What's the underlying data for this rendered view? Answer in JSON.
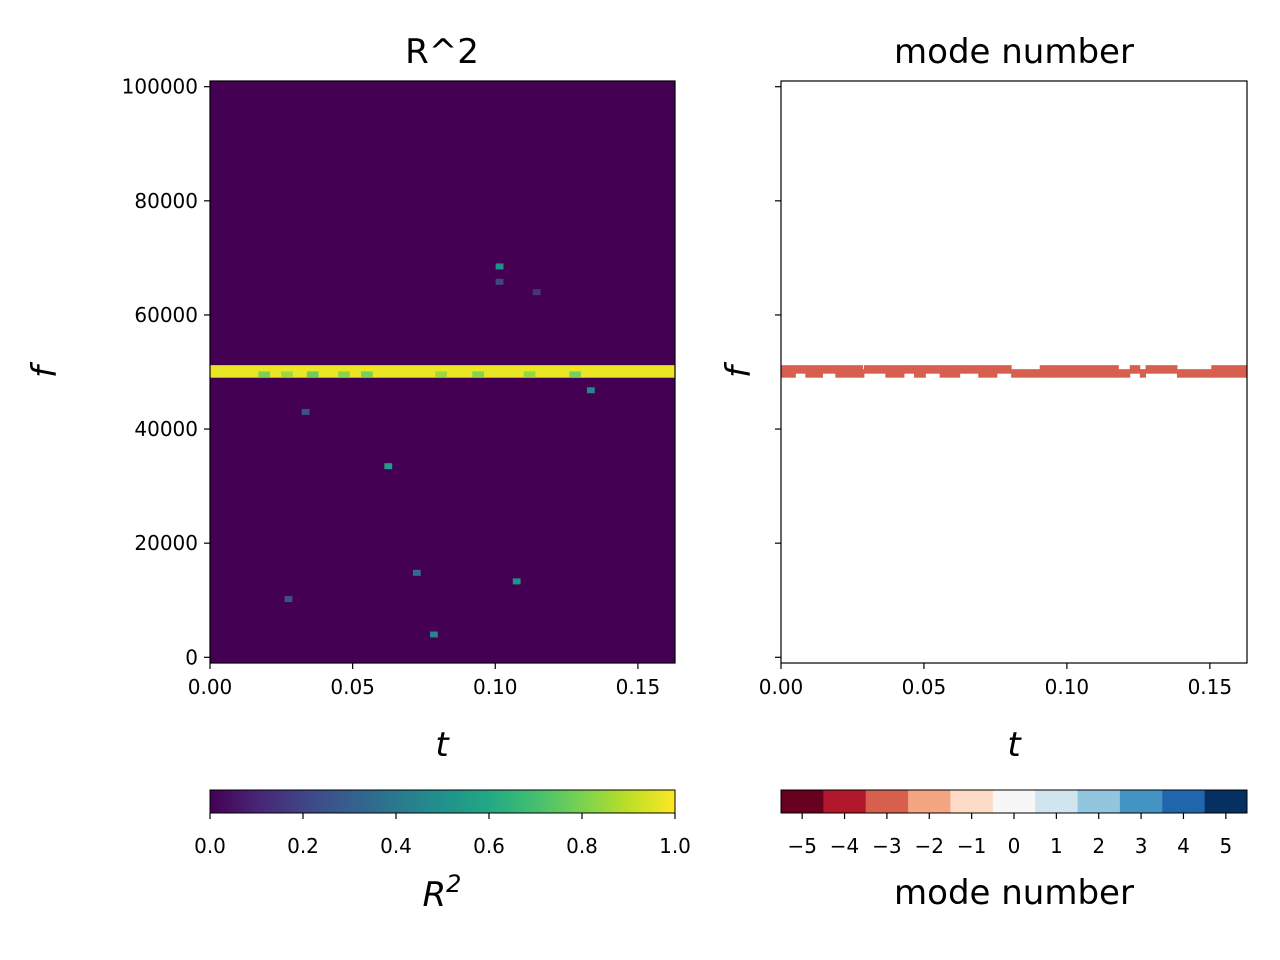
{
  "chart_data": [
    {
      "type": "heatmap",
      "title": "R^2",
      "xlabel": "t",
      "ylabel": "f",
      "xlim": [
        0,
        0.163
      ],
      "ylim": [
        -1000,
        101000
      ],
      "xticks": [
        0.0,
        0.05,
        0.1,
        0.15
      ],
      "xtick_labels": [
        "0.00",
        "0.05",
        "0.10",
        "0.15"
      ],
      "yticks": [
        0,
        20000,
        40000,
        60000,
        80000,
        100000
      ],
      "ytick_labels": [
        "0",
        "20000",
        "40000",
        "60000",
        "80000",
        "100000"
      ],
      "background_value": 0.0,
      "band": {
        "f_low": 49000,
        "f_high": 51200,
        "value": 0.97
      },
      "band_dips": [
        {
          "t": 0.019,
          "value": 0.8
        },
        {
          "t": 0.027,
          "value": 0.85
        },
        {
          "t": 0.036,
          "value": 0.78
        },
        {
          "t": 0.047,
          "value": 0.82
        },
        {
          "t": 0.055,
          "value": 0.8
        },
        {
          "t": 0.081,
          "value": 0.85
        },
        {
          "t": 0.094,
          "value": 0.82
        },
        {
          "t": 0.112,
          "value": 0.84
        },
        {
          "t": 0.128,
          "value": 0.8
        }
      ],
      "cells": [
        {
          "t": 0.1015,
          "f": 68500,
          "value": 0.5
        },
        {
          "t": 0.1015,
          "f": 65800,
          "value": 0.2
        },
        {
          "t": 0.1145,
          "f": 64000,
          "value": 0.15
        },
        {
          "t": 0.1335,
          "f": 46800,
          "value": 0.45
        },
        {
          "t": 0.0335,
          "f": 43000,
          "value": 0.25
        },
        {
          "t": 0.0625,
          "f": 33500,
          "value": 0.55
        },
        {
          "t": 0.0725,
          "f": 14800,
          "value": 0.35
        },
        {
          "t": 0.1075,
          "f": 13300,
          "value": 0.5
        },
        {
          "t": 0.0275,
          "f": 10200,
          "value": 0.25
        },
        {
          "t": 0.0785,
          "f": 4000,
          "value": 0.45
        }
      ],
      "colorbar": {
        "label": "R^2",
        "cmap": "viridis",
        "range": [
          0,
          1
        ],
        "ticks": [
          0.0,
          0.2,
          0.4,
          0.6,
          0.8,
          1.0
        ],
        "tick_labels": [
          "0.0",
          "0.2",
          "0.4",
          "0.6",
          "0.8",
          "1.0"
        ]
      }
    },
    {
      "type": "heatmap",
      "title": "mode number",
      "xlabel": "t",
      "ylabel": "f",
      "xlim": [
        0,
        0.163
      ],
      "ylim": [
        -1000,
        101000
      ],
      "xticks": [
        0.0,
        0.05,
        0.1,
        0.15
      ],
      "xtick_labels": [
        "0.00",
        "0.05",
        "0.10",
        "0.15"
      ],
      "yticks": [
        0,
        20000,
        40000,
        60000,
        80000,
        100000
      ],
      "mode_value": -3,
      "mode_color": "#d6604d",
      "band_segments": [
        {
          "t0": 0.0,
          "t1": 0.005,
          "f_low": 49000,
          "f_high": 51200
        },
        {
          "t0": 0.005,
          "t1": 0.0085,
          "f_low": 49700,
          "f_high": 51200
        },
        {
          "t0": 0.0085,
          "t1": 0.0145,
          "f_low": 49000,
          "f_high": 51200
        },
        {
          "t0": 0.0145,
          "t1": 0.019,
          "f_low": 49700,
          "f_high": 51200
        },
        {
          "t0": 0.019,
          "t1": 0.0285,
          "f_low": 49000,
          "f_high": 51200
        },
        {
          "t0": 0.0285,
          "t1": 0.029,
          "f_low": 49000,
          "f_high": 50500
        },
        {
          "t0": 0.029,
          "t1": 0.0365,
          "f_low": 49700,
          "f_high": 51200
        },
        {
          "t0": 0.0365,
          "t1": 0.043,
          "f_low": 49000,
          "f_high": 51200
        },
        {
          "t0": 0.043,
          "t1": 0.0465,
          "f_low": 49700,
          "f_high": 51200
        },
        {
          "t0": 0.0465,
          "t1": 0.0505,
          "f_low": 49000,
          "f_high": 51200
        },
        {
          "t0": 0.0505,
          "t1": 0.0555,
          "f_low": 49700,
          "f_high": 51200
        },
        {
          "t0": 0.0555,
          "t1": 0.0625,
          "f_low": 49000,
          "f_high": 51200
        },
        {
          "t0": 0.0625,
          "t1": 0.069,
          "f_low": 49700,
          "f_high": 51200
        },
        {
          "t0": 0.069,
          "t1": 0.0755,
          "f_low": 49000,
          "f_high": 51200
        },
        {
          "t0": 0.0755,
          "t1": 0.0805,
          "f_low": 49700,
          "f_high": 51200
        },
        {
          "t0": 0.0805,
          "t1": 0.0905,
          "f_low": 49000,
          "f_high": 50500
        },
        {
          "t0": 0.0905,
          "t1": 0.0945,
          "f_low": 49000,
          "f_high": 51200
        },
        {
          "t0": 0.0945,
          "t1": 0.118,
          "f_low": 49000,
          "f_high": 51200
        },
        {
          "t0": 0.118,
          "t1": 0.122,
          "f_low": 49000,
          "f_high": 50500
        },
        {
          "t0": 0.122,
          "t1": 0.1255,
          "f_low": 49700,
          "f_high": 51200
        },
        {
          "t0": 0.1255,
          "t1": 0.1275,
          "f_low": 49000,
          "f_high": 50500
        },
        {
          "t0": 0.1275,
          "t1": 0.1385,
          "f_low": 49700,
          "f_high": 51200
        },
        {
          "t0": 0.1385,
          "t1": 0.1505,
          "f_low": 49000,
          "f_high": 50500
        },
        {
          "t0": 0.1505,
          "t1": 0.163,
          "f_low": 49000,
          "f_high": 51200
        }
      ],
      "colorbar": {
        "label": "mode number",
        "cmap": "RdBu",
        "values": [
          -5,
          -4,
          -3,
          -2,
          -1,
          0,
          1,
          2,
          3,
          4,
          5
        ],
        "colors": [
          "#67001f",
          "#b2182b",
          "#d6604d",
          "#f4a582",
          "#fddbc7",
          "#f7f7f7",
          "#d1e5f0",
          "#92c5de",
          "#4393c3",
          "#2166ac",
          "#053061"
        ],
        "tick_labels": [
          "−5",
          "−4",
          "−3",
          "−2",
          "−1",
          "0",
          "1",
          "2",
          "3",
          "4",
          "5"
        ]
      }
    }
  ]
}
